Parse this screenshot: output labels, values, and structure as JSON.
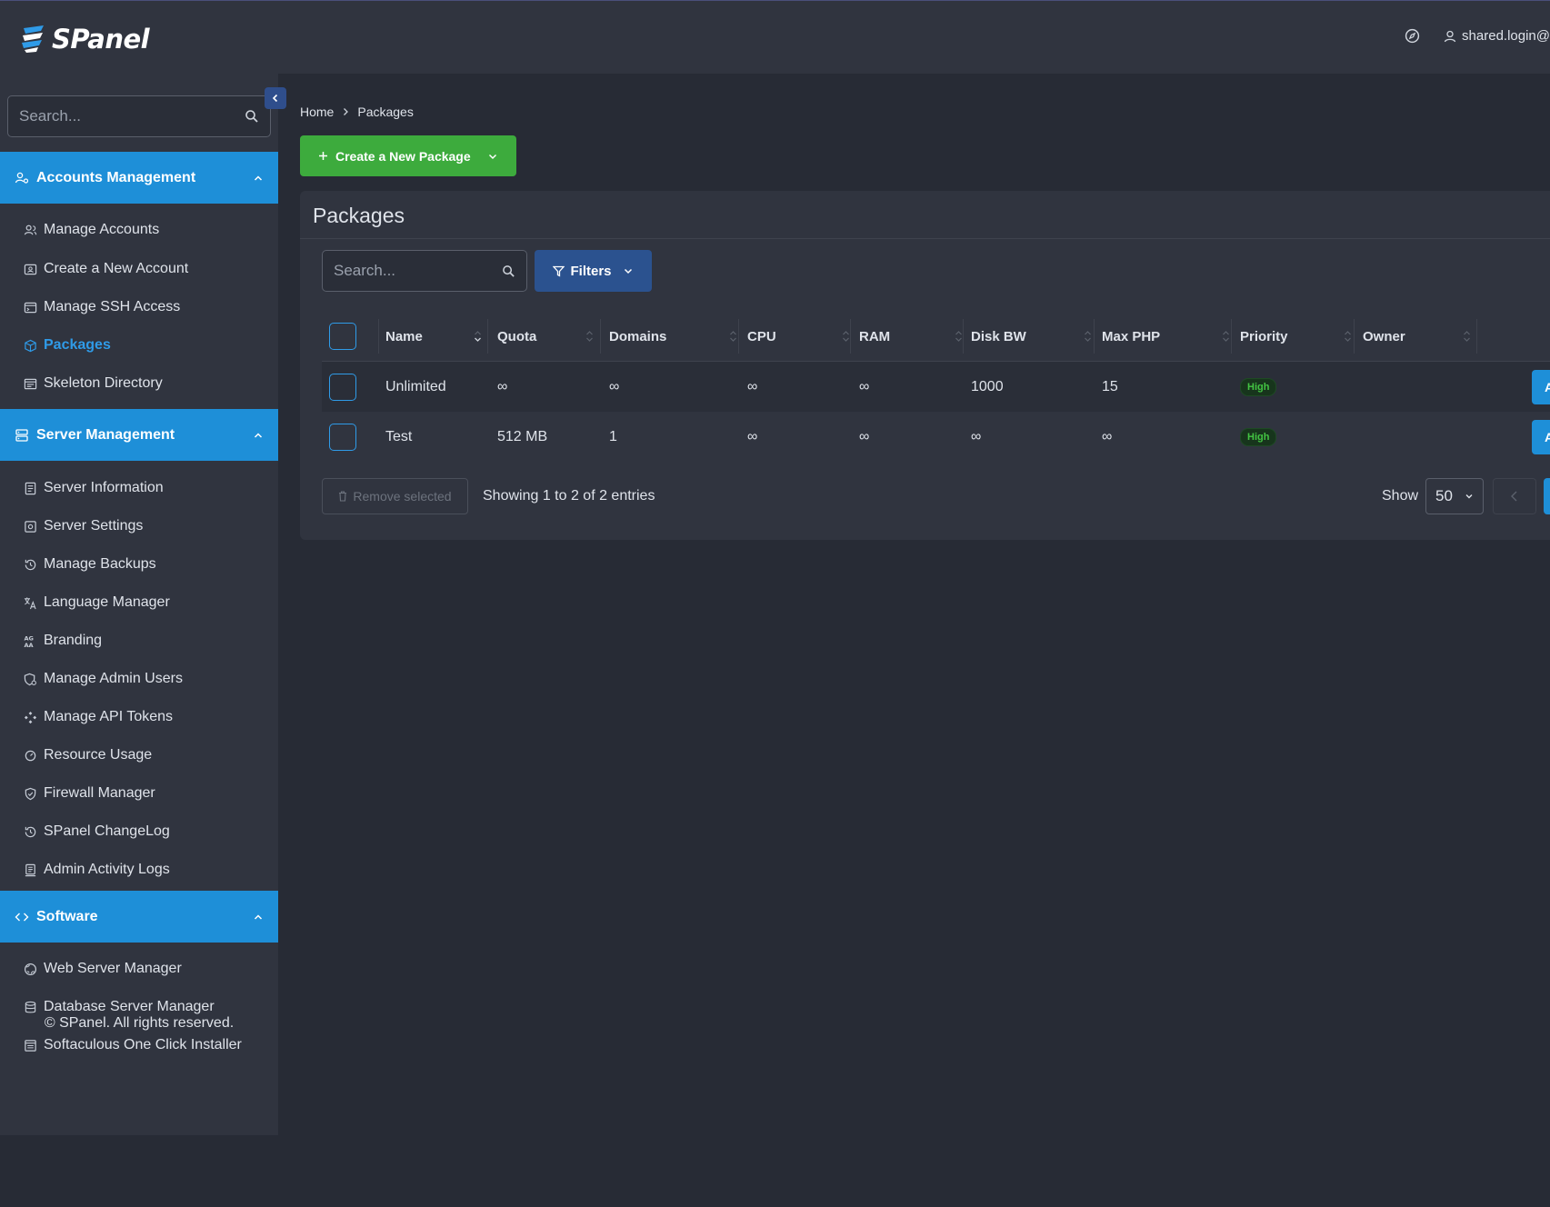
{
  "header": {
    "brand": "SPanel",
    "user": "shared.login@"
  },
  "sidebar": {
    "search_placeholder": "Search...",
    "sections": [
      {
        "title": "Accounts Management",
        "items": [
          {
            "label": "Manage Accounts",
            "icon": "users-icon"
          },
          {
            "label": "Create a New Account",
            "icon": "add-account-icon"
          },
          {
            "label": "Manage SSH Access",
            "icon": "terminal-icon"
          },
          {
            "label": "Packages",
            "icon": "package-icon",
            "active": true
          },
          {
            "label": "Skeleton Directory",
            "icon": "folder-icon"
          }
        ]
      },
      {
        "title": "Server Management",
        "items": [
          {
            "label": "Server Information",
            "icon": "info-doc-icon"
          },
          {
            "label": "Server Settings",
            "icon": "settings-icon"
          },
          {
            "label": "Manage Backups",
            "icon": "history-icon"
          },
          {
            "label": "Language Manager",
            "icon": "translate-icon"
          },
          {
            "label": "Branding",
            "icon": "branding-icon"
          },
          {
            "label": "Manage Admin Users",
            "icon": "admin-shield-icon"
          },
          {
            "label": "Manage API Tokens",
            "icon": "api-icon"
          },
          {
            "label": "Resource Usage",
            "icon": "gauge-icon"
          },
          {
            "label": "Firewall Manager",
            "icon": "shield-check-icon"
          },
          {
            "label": "SPanel ChangeLog",
            "icon": "changelog-icon"
          },
          {
            "label": "Admin Activity Logs",
            "icon": "log-icon"
          }
        ]
      },
      {
        "title": "Software",
        "items": [
          {
            "label": "Web Server Manager",
            "icon": "globe-icon"
          },
          {
            "label": "Database Server Manager",
            "icon": "database-icon"
          },
          {
            "label": "Softaculous One Click Installer",
            "icon": "installer-icon"
          }
        ]
      }
    ],
    "copyright": "© SPanel. All rights reserved."
  },
  "breadcrumb": {
    "home": "Home",
    "current": "Packages"
  },
  "create_button": "Create a New Package",
  "card": {
    "title": "Packages",
    "search_placeholder": "Search...",
    "filters_label": "Filters"
  },
  "table": {
    "columns": [
      "Name",
      "Quota",
      "Domains",
      "CPU",
      "RAM",
      "Disk BW",
      "Max PHP",
      "Priority",
      "Owner"
    ],
    "rows": [
      {
        "name": "Unlimited",
        "quota": "∞",
        "domains": "∞",
        "cpu": "∞",
        "ram": "∞",
        "disk_bw": "1000",
        "max_php": "15",
        "priority": "High",
        "owner": "",
        "action": "A"
      },
      {
        "name": "Test",
        "quota": "512 MB",
        "domains": "1",
        "cpu": "∞",
        "ram": "∞",
        "disk_bw": "∞",
        "max_php": "∞",
        "priority": "High",
        "owner": "",
        "action": "A"
      }
    ]
  },
  "footer": {
    "remove_label": "Remove selected",
    "showing": "Showing 1 to 2 of 2 entries",
    "show_label": "Show",
    "per_page": "50"
  },
  "colors": {
    "accent": "#1e8fd8",
    "create": "#3dab3d",
    "filters": "#2b528f",
    "badge_text": "#43c443"
  }
}
